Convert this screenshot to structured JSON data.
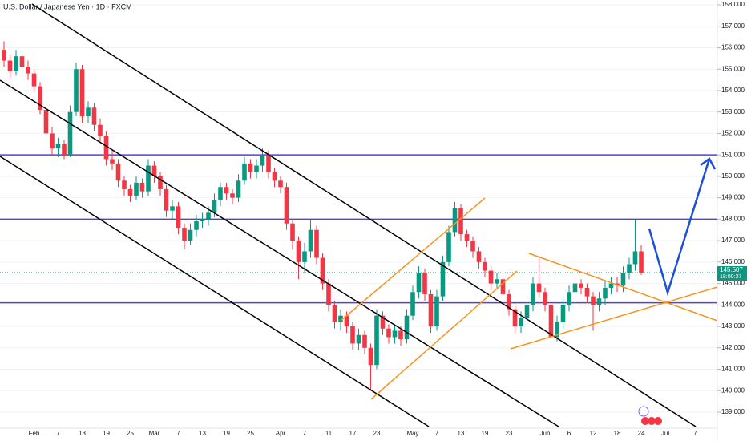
{
  "chart_data": {
    "type": "candlestick",
    "title": "U.S. Dollar / Japanese Yen · 1D · FXCM",
    "categories": [
      null,
      null,
      null,
      null,
      null,
      "Feb",
      null,
      null,
      null,
      "7",
      null,
      null,
      null,
      "13",
      null,
      null,
      null,
      "19",
      null,
      null,
      null,
      "25",
      null,
      null,
      null,
      "Mar",
      null,
      null,
      null,
      "7",
      null,
      null,
      null,
      "13",
      null,
      null,
      null,
      "19",
      null,
      null,
      null,
      "25",
      null,
      null,
      null,
      null,
      "Apr",
      null,
      null,
      null,
      "7",
      null,
      null,
      null,
      "11",
      null,
      null,
      null,
      "17",
      null,
      null,
      null,
      "23",
      null,
      null,
      null,
      null,
      null,
      "May",
      null,
      null,
      null,
      "7",
      null,
      null,
      null,
      "13",
      null,
      null,
      null,
      "19",
      null,
      null,
      null,
      "23",
      null,
      null,
      null,
      null,
      null,
      "Jun",
      null,
      null,
      null,
      "6",
      null,
      null,
      null,
      "12",
      null,
      null,
      null,
      "18",
      null,
      null,
      null,
      "24",
      null,
      null,
      null,
      "Jul",
      null,
      null,
      null,
      null,
      "7"
    ],
    "candles": [
      [
        155.9,
        156.3,
        155.1,
        155.4
      ],
      [
        155.4,
        155.7,
        154.6,
        154.9
      ],
      [
        154.9,
        155.9,
        154.7,
        155.6
      ],
      [
        155.6,
        155.8,
        154.9,
        155.1
      ],
      [
        155.1,
        155.4,
        154.5,
        154.8
      ],
      [
        154.8,
        155.0,
        154.0,
        154.2
      ],
      [
        154.2,
        154.4,
        152.9,
        153.1
      ],
      [
        153.1,
        153.3,
        151.7,
        152.0
      ],
      [
        152.0,
        152.3,
        151.0,
        151.3
      ],
      [
        151.3,
        151.8,
        150.9,
        151.5
      ],
      [
        151.5,
        151.7,
        150.8,
        151.0
      ],
      [
        151.0,
        153.3,
        150.9,
        153.0
      ],
      [
        153.0,
        155.3,
        152.8,
        155.0
      ],
      [
        155.0,
        155.2,
        152.5,
        152.8
      ],
      [
        152.8,
        153.5,
        152.5,
        153.2
      ],
      [
        153.2,
        153.4,
        152.1,
        152.4
      ],
      [
        152.4,
        152.7,
        151.6,
        151.9
      ],
      [
        151.9,
        152.1,
        150.5,
        150.8
      ],
      [
        150.8,
        151.2,
        150.3,
        150.6
      ],
      [
        150.6,
        150.8,
        149.5,
        149.8
      ],
      [
        149.8,
        150.0,
        149.1,
        149.4
      ],
      [
        149.4,
        149.6,
        148.8,
        149.1
      ],
      [
        149.1,
        150.0,
        148.9,
        149.7
      ],
      [
        149.7,
        149.9,
        149.0,
        149.3
      ],
      [
        149.3,
        150.8,
        149.1,
        150.5
      ],
      [
        150.5,
        150.7,
        149.7,
        150.0
      ],
      [
        150.0,
        150.2,
        149.1,
        149.4
      ],
      [
        149.4,
        149.6,
        148.1,
        148.4
      ],
      [
        148.4,
        148.9,
        148.0,
        148.6
      ],
      [
        148.6,
        148.8,
        147.3,
        147.6
      ],
      [
        147.6,
        147.8,
        146.6,
        147.0
      ],
      [
        147.0,
        147.8,
        146.8,
        147.5
      ],
      [
        147.5,
        148.2,
        147.2,
        147.9
      ],
      [
        147.9,
        148.3,
        147.6,
        148.0
      ],
      [
        148.0,
        148.6,
        147.7,
        148.3
      ],
      [
        148.3,
        149.2,
        148.1,
        148.9
      ],
      [
        148.9,
        149.7,
        148.6,
        149.5
      ],
      [
        149.5,
        149.7,
        148.9,
        149.2
      ],
      [
        149.2,
        149.4,
        148.7,
        149.0
      ],
      [
        149.0,
        150.1,
        148.8,
        149.8
      ],
      [
        149.8,
        150.9,
        149.6,
        150.6
      ],
      [
        150.6,
        150.8,
        149.9,
        150.2
      ],
      [
        150.2,
        150.8,
        149.9,
        150.5
      ],
      [
        150.5,
        151.3,
        150.2,
        151.0
      ],
      [
        151.0,
        151.2,
        149.9,
        150.2
      ],
      [
        150.2,
        150.4,
        149.5,
        149.8
      ],
      [
        149.8,
        150.0,
        149.2,
        149.5
      ],
      [
        149.5,
        149.7,
        147.5,
        147.8
      ],
      [
        147.8,
        148.0,
        146.6,
        147.0
      ],
      [
        147.0,
        147.2,
        145.2,
        146.0
      ],
      [
        146.0,
        146.9,
        145.5,
        146.5
      ],
      [
        146.5,
        148.0,
        146.2,
        147.5
      ],
      [
        147.5,
        147.7,
        145.9,
        146.2
      ],
      [
        146.2,
        146.4,
        144.7,
        145.0
      ],
      [
        145.0,
        145.2,
        143.7,
        144.0
      ],
      [
        144.0,
        144.2,
        142.9,
        143.2
      ],
      [
        143.2,
        143.8,
        142.8,
        143.5
      ],
      [
        143.5,
        143.7,
        142.7,
        143.0
      ],
      [
        143.0,
        143.2,
        141.9,
        142.2
      ],
      [
        142.2,
        142.9,
        141.9,
        142.6
      ],
      [
        142.6,
        142.8,
        141.7,
        142.0
      ],
      [
        142.0,
        142.2,
        140.0,
        141.2
      ],
      [
        141.2,
        143.8,
        141.0,
        143.5
      ],
      [
        143.5,
        143.7,
        142.6,
        142.9
      ],
      [
        142.9,
        143.1,
        142.2,
        142.5
      ],
      [
        142.5,
        143.1,
        142.2,
        142.8
      ],
      [
        142.8,
        143.0,
        142.1,
        142.4
      ],
      [
        142.4,
        143.8,
        142.2,
        143.5
      ],
      [
        143.5,
        144.9,
        143.3,
        144.6
      ],
      [
        144.6,
        145.8,
        144.3,
        145.5
      ],
      [
        145.5,
        145.7,
        144.2,
        144.5
      ],
      [
        144.5,
        144.7,
        142.7,
        143.0
      ],
      [
        143.0,
        144.7,
        142.8,
        144.4
      ],
      [
        144.4,
        146.3,
        144.2,
        146.0
      ],
      [
        146.0,
        147.7,
        145.8,
        147.4
      ],
      [
        147.4,
        148.8,
        147.2,
        148.5
      ],
      [
        148.5,
        148.7,
        147.0,
        147.3
      ],
      [
        147.3,
        147.5,
        146.7,
        147.0
      ],
      [
        147.0,
        147.2,
        146.2,
        146.5
      ],
      [
        146.5,
        146.7,
        145.7,
        146.0
      ],
      [
        146.0,
        146.2,
        145.3,
        145.6
      ],
      [
        145.6,
        145.8,
        144.7,
        145.0
      ],
      [
        145.0,
        145.5,
        144.8,
        145.2
      ],
      [
        145.2,
        145.4,
        144.2,
        144.5
      ],
      [
        144.5,
        144.7,
        143.5,
        143.8
      ],
      [
        143.8,
        144.0,
        142.7,
        143.0
      ],
      [
        143.0,
        143.7,
        142.7,
        143.4
      ],
      [
        143.4,
        144.3,
        143.1,
        144.0
      ],
      [
        144.0,
        145.3,
        143.7,
        145.0
      ],
      [
        145.0,
        146.3,
        144.3,
        144.6
      ],
      [
        144.6,
        144.8,
        143.7,
        144.0
      ],
      [
        144.0,
        144.2,
        142.2,
        142.5
      ],
      [
        142.5,
        143.5,
        142.3,
        143.2
      ],
      [
        143.2,
        144.3,
        142.9,
        144.0
      ],
      [
        144.0,
        144.9,
        143.7,
        144.6
      ],
      [
        144.6,
        145.3,
        144.3,
        145.0
      ],
      [
        145.0,
        145.2,
        144.5,
        144.8
      ],
      [
        144.8,
        145.0,
        144.1,
        144.4
      ],
      [
        144.4,
        144.6,
        142.8,
        144.0
      ],
      [
        144.0,
        144.6,
        143.7,
        144.3
      ],
      [
        144.3,
        145.1,
        144.0,
        144.8
      ],
      [
        144.8,
        145.3,
        144.5,
        145.0
      ],
      [
        145.0,
        145.3,
        144.6,
        144.9
      ],
      [
        144.9,
        145.8,
        144.6,
        145.5
      ],
      [
        145.5,
        146.2,
        145.2,
        145.9
      ],
      [
        145.9,
        148.0,
        145.6,
        146.5
      ],
      [
        146.5,
        146.8,
        145.4,
        145.5
      ],
      null,
      null,
      null,
      null,
      null,
      null,
      null,
      null,
      null
    ],
    "up_color": "#089981",
    "down_color": "#f23645",
    "ylim": [
      139,
      158
    ],
    "yticks": [
      {
        "value": 139,
        "label": "139.000"
      },
      {
        "value": 140,
        "label": "140.000"
      },
      {
        "value": 141,
        "label": "141.000"
      },
      {
        "value": 142,
        "label": "142.000"
      },
      {
        "value": 143,
        "label": "143.000"
      },
      {
        "value": 144,
        "label": "144.000"
      },
      {
        "value": 145,
        "label": "145.000"
      },
      {
        "value": 146,
        "label": "146.000"
      },
      {
        "value": 147,
        "label": "147.000"
      },
      {
        "value": 148,
        "label": "148.000"
      },
      {
        "value": 149,
        "label": "149.000"
      },
      {
        "value": 150,
        "label": "150.000"
      },
      {
        "value": 151,
        "label": "151.000"
      },
      {
        "value": 152,
        "label": "152.000"
      },
      {
        "value": 153,
        "label": "153.000"
      },
      {
        "value": 154,
        "label": "154.000"
      },
      {
        "value": 155,
        "label": "155.000"
      },
      {
        "value": 156,
        "label": "156.000"
      },
      {
        "value": 157,
        "label": "157.000"
      },
      {
        "value": 158,
        "label": "158.000"
      }
    ],
    "levels": [
      151.0,
      148.0,
      144.1
    ],
    "level_color": "#5b3fd1",
    "last_price": {
      "value": 145.507,
      "label": "145.507"
    },
    "countdown": "18:00:37"
  }
}
